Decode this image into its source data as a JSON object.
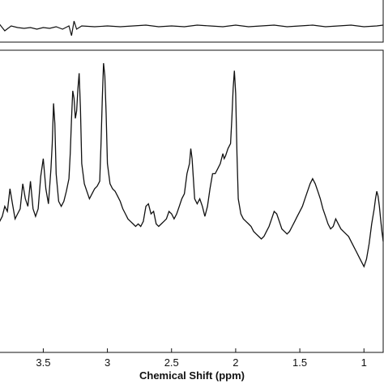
{
  "chart_data": [
    {
      "type": "line",
      "title": "",
      "xlabel": "",
      "ylabel": "",
      "x_reversed": true,
      "xlim": [
        3.85,
        0.85
      ],
      "ylim": [
        -1,
        1
      ],
      "series": [
        {
          "points": [
            [
              3.85,
              0.2
            ],
            [
              3.8,
              -0.3
            ],
            [
              3.75,
              0.0
            ],
            [
              3.7,
              -0.1
            ],
            [
              3.65,
              -0.15
            ],
            [
              3.6,
              -0.1
            ],
            [
              3.55,
              -0.2
            ],
            [
              3.5,
              -0.1
            ],
            [
              3.45,
              -0.15
            ],
            [
              3.4,
              -0.05
            ],
            [
              3.35,
              -0.2
            ],
            [
              3.3,
              0.0
            ],
            [
              3.28,
              -0.6
            ],
            [
              3.26,
              0.3
            ],
            [
              3.24,
              -0.2
            ],
            [
              3.2,
              0.0
            ],
            [
              3.1,
              -0.05
            ],
            [
              3.0,
              0.0
            ],
            [
              2.9,
              -0.05
            ],
            [
              2.8,
              0.0
            ],
            [
              2.7,
              0.05
            ],
            [
              2.6,
              -0.05
            ],
            [
              2.5,
              0.0
            ],
            [
              2.4,
              -0.05
            ],
            [
              2.3,
              0.05
            ],
            [
              2.2,
              0.0
            ],
            [
              2.1,
              -0.05
            ],
            [
              2.0,
              0.05
            ],
            [
              1.9,
              -0.05
            ],
            [
              1.8,
              0.0
            ],
            [
              1.7,
              0.05
            ],
            [
              1.6,
              -0.05
            ],
            [
              1.5,
              0.0
            ],
            [
              1.4,
              0.05
            ],
            [
              1.3,
              -0.05
            ],
            [
              1.2,
              0.0
            ],
            [
              1.1,
              0.05
            ],
            [
              1.0,
              -0.05
            ],
            [
              0.9,
              0.0
            ],
            [
              0.85,
              0.05
            ]
          ]
        }
      ]
    },
    {
      "type": "line",
      "title": "",
      "xlabel": "Chemical Shift (ppm)",
      "ylabel": "",
      "x_reversed": true,
      "xlim": [
        3.85,
        0.85
      ],
      "ylim": [
        0,
        10
      ],
      "x_ticks": [
        3.5,
        3,
        2.5,
        2,
        1.5,
        1
      ],
      "x_tick_labels": [
        "3.5",
        "3",
        "2.5",
        "2",
        "1.5",
        "1"
      ],
      "series": [
        {
          "points": [
            [
              3.85,
              3.6
            ],
            [
              3.82,
              3.9
            ],
            [
              3.8,
              4.3
            ],
            [
              3.78,
              4.1
            ],
            [
              3.76,
              5.0
            ],
            [
              3.74,
              4.4
            ],
            [
              3.72,
              3.8
            ],
            [
              3.7,
              4.0
            ],
            [
              3.68,
              4.2
            ],
            [
              3.66,
              5.2
            ],
            [
              3.64,
              4.6
            ],
            [
              3.62,
              4.3
            ],
            [
              3.6,
              5.3
            ],
            [
              3.58,
              4.2
            ],
            [
              3.56,
              3.9
            ],
            [
              3.54,
              4.2
            ],
            [
              3.52,
              5.5
            ],
            [
              3.5,
              6.2
            ],
            [
              3.48,
              5.0
            ],
            [
              3.46,
              4.4
            ],
            [
              3.44,
              5.8
            ],
            [
              3.43,
              6.8
            ],
            [
              3.42,
              8.4
            ],
            [
              3.41,
              7.6
            ],
            [
              3.4,
              5.6
            ],
            [
              3.38,
              4.5
            ],
            [
              3.36,
              4.3
            ],
            [
              3.34,
              4.5
            ],
            [
              3.32,
              4.9
            ],
            [
              3.3,
              5.4
            ],
            [
              3.29,
              6.4
            ],
            [
              3.28,
              7.8
            ],
            [
              3.27,
              8.9
            ],
            [
              3.26,
              8.6
            ],
            [
              3.25,
              7.8
            ],
            [
              3.24,
              8.1
            ],
            [
              3.23,
              9.0
            ],
            [
              3.22,
              9.6
            ],
            [
              3.21,
              8.2
            ],
            [
              3.2,
              6.0
            ],
            [
              3.18,
              5.2
            ],
            [
              3.16,
              4.9
            ],
            [
              3.14,
              4.6
            ],
            [
              3.12,
              4.8
            ],
            [
              3.1,
              5.0
            ],
            [
              3.08,
              5.1
            ],
            [
              3.06,
              5.3
            ],
            [
              3.05,
              6.8
            ],
            [
              3.04,
              8.6
            ],
            [
              3.03,
              10.0
            ],
            [
              3.02,
              9.5
            ],
            [
              3.01,
              8.0
            ],
            [
              3.0,
              6.0
            ],
            [
              2.98,
              5.2
            ],
            [
              2.96,
              5.0
            ],
            [
              2.94,
              4.9
            ],
            [
              2.92,
              4.7
            ],
            [
              2.9,
              4.5
            ],
            [
              2.88,
              4.2
            ],
            [
              2.86,
              4.0
            ],
            [
              2.84,
              3.8
            ],
            [
              2.82,
              3.7
            ],
            [
              2.8,
              3.6
            ],
            [
              2.78,
              3.5
            ],
            [
              2.76,
              3.6
            ],
            [
              2.74,
              3.5
            ],
            [
              2.72,
              3.7
            ],
            [
              2.7,
              4.3
            ],
            [
              2.68,
              4.4
            ],
            [
              2.66,
              4.0
            ],
            [
              2.64,
              4.1
            ],
            [
              2.62,
              3.6
            ],
            [
              2.6,
              3.5
            ],
            [
              2.58,
              3.6
            ],
            [
              2.56,
              3.7
            ],
            [
              2.54,
              3.8
            ],
            [
              2.52,
              4.1
            ],
            [
              2.5,
              4.0
            ],
            [
              2.48,
              3.8
            ],
            [
              2.46,
              4.0
            ],
            [
              2.44,
              4.3
            ],
            [
              2.42,
              4.6
            ],
            [
              2.4,
              4.8
            ],
            [
              2.38,
              5.6
            ],
            [
              2.36,
              6.0
            ],
            [
              2.35,
              6.6
            ],
            [
              2.34,
              6.2
            ],
            [
              2.33,
              5.4
            ],
            [
              2.32,
              4.6
            ],
            [
              2.3,
              4.4
            ],
            [
              2.28,
              4.6
            ],
            [
              2.26,
              4.3
            ],
            [
              2.24,
              3.9
            ],
            [
              2.22,
              4.3
            ],
            [
              2.2,
              5.0
            ],
            [
              2.18,
              5.6
            ],
            [
              2.16,
              5.6
            ],
            [
              2.14,
              5.8
            ],
            [
              2.12,
              6.0
            ],
            [
              2.1,
              6.4
            ],
            [
              2.09,
              6.2
            ],
            [
              2.08,
              6.3
            ],
            [
              2.06,
              6.6
            ],
            [
              2.05,
              6.7
            ],
            [
              2.04,
              6.8
            ],
            [
              2.03,
              7.8
            ],
            [
              2.02,
              9.0
            ],
            [
              2.01,
              9.7
            ],
            [
              2.0,
              8.8
            ],
            [
              1.99,
              6.4
            ],
            [
              1.98,
              4.6
            ],
            [
              1.96,
              4.0
            ],
            [
              1.94,
              3.8
            ],
            [
              1.92,
              3.7
            ],
            [
              1.9,
              3.6
            ],
            [
              1.88,
              3.5
            ],
            [
              1.86,
              3.3
            ],
            [
              1.84,
              3.2
            ],
            [
              1.82,
              3.1
            ],
            [
              1.8,
              3.0
            ],
            [
              1.78,
              3.1
            ],
            [
              1.76,
              3.3
            ],
            [
              1.74,
              3.5
            ],
            [
              1.72,
              3.8
            ],
            [
              1.7,
              4.1
            ],
            [
              1.68,
              4.0
            ],
            [
              1.66,
              3.7
            ],
            [
              1.64,
              3.4
            ],
            [
              1.62,
              3.3
            ],
            [
              1.6,
              3.2
            ],
            [
              1.58,
              3.3
            ],
            [
              1.56,
              3.5
            ],
            [
              1.54,
              3.7
            ],
            [
              1.52,
              3.9
            ],
            [
              1.5,
              4.1
            ],
            [
              1.48,
              4.3
            ],
            [
              1.46,
              4.6
            ],
            [
              1.44,
              4.9
            ],
            [
              1.42,
              5.2
            ],
            [
              1.4,
              5.4
            ],
            [
              1.38,
              5.2
            ],
            [
              1.36,
              4.9
            ],
            [
              1.34,
              4.6
            ],
            [
              1.32,
              4.2
            ],
            [
              1.3,
              3.9
            ],
            [
              1.28,
              3.6
            ],
            [
              1.26,
              3.4
            ],
            [
              1.24,
              3.5
            ],
            [
              1.22,
              3.8
            ],
            [
              1.2,
              3.6
            ],
            [
              1.18,
              3.4
            ],
            [
              1.16,
              3.3
            ],
            [
              1.14,
              3.2
            ],
            [
              1.12,
              3.1
            ],
            [
              1.1,
              2.9
            ],
            [
              1.08,
              2.7
            ],
            [
              1.06,
              2.5
            ],
            [
              1.04,
              2.3
            ],
            [
              1.02,
              2.1
            ],
            [
              1.0,
              1.9
            ],
            [
              0.98,
              2.2
            ],
            [
              0.96,
              2.8
            ],
            [
              0.94,
              3.6
            ],
            [
              0.92,
              4.2
            ],
            [
              0.91,
              4.6
            ],
            [
              0.9,
              4.9
            ],
            [
              0.89,
              4.7
            ],
            [
              0.88,
              4.3
            ],
            [
              0.87,
              3.8
            ],
            [
              0.86,
              3.3
            ],
            [
              0.85,
              2.9
            ]
          ]
        }
      ]
    }
  ]
}
